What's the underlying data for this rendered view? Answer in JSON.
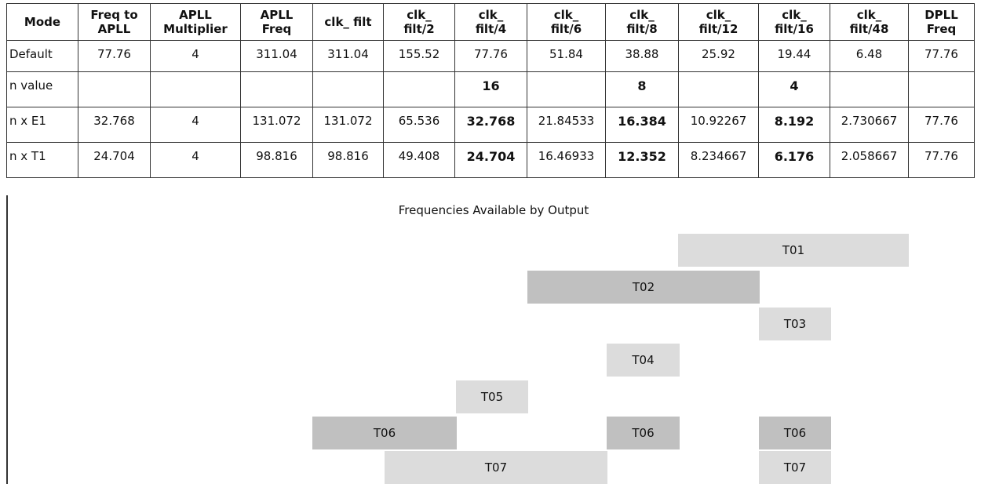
{
  "table": {
    "headers": [
      "Mode",
      "Freq to\nAPLL",
      "APLL\nMultiplier",
      "APLL\nFreq",
      "clk_ filt",
      "clk_\nfilt/2",
      "clk_\nfilt/4",
      "clk_\nfilt/6",
      "clk_\nfilt/8",
      "clk_\nfilt/12",
      "clk_\nfilt/16",
      "clk_\nfilt/48",
      "DPLL\nFreq"
    ],
    "rows": [
      {
        "label": "Default",
        "cells": [
          "77.76",
          "4",
          "311.04",
          "311.04",
          "155.52",
          "77.76",
          "51.84",
          "38.88",
          "25.92",
          "19.44",
          "6.48",
          "77.76"
        ]
      },
      {
        "label": "n value",
        "cells": [
          "",
          "",
          "",
          "",
          "",
          "16",
          "",
          "8",
          "",
          "4",
          "",
          ""
        ]
      },
      {
        "label": "n x E1",
        "cells": [
          "32.768",
          "4",
          "131.072",
          "131.072",
          "65.536",
          "32.768",
          "21.84533",
          "16.384",
          "10.92267",
          "8.192",
          "2.730667",
          "77.76"
        ]
      },
      {
        "label": "n x T1",
        "cells": [
          "24.704",
          "4",
          "98.816",
          "98.816",
          "49.408",
          "24.704",
          "16.46933",
          "12.352",
          "8.234667",
          "6.176",
          "2.058667",
          "77.76"
        ]
      }
    ]
  },
  "chart": {
    "title": "Frequencies Available by Output",
    "bars": [
      {
        "label": "T01",
        "shade": "light"
      },
      {
        "label": "T02",
        "shade": "dark"
      },
      {
        "label": "T03",
        "shade": "light"
      },
      {
        "label": "T04",
        "shade": "light"
      },
      {
        "label": "T05",
        "shade": "light"
      },
      {
        "label": "T06",
        "shade": "dark"
      },
      {
        "label": "T06",
        "shade": "dark"
      },
      {
        "label": "T06",
        "shade": "dark"
      },
      {
        "label": "T07",
        "shade": "light"
      },
      {
        "label": "T07",
        "shade": "light"
      }
    ]
  },
  "colors": {
    "light_bar": "#dcdcdc",
    "dark_bar": "#c0c0c0",
    "border": "#333333"
  }
}
